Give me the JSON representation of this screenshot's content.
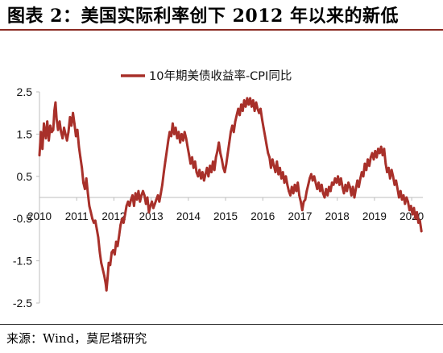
{
  "header": {
    "title": "图表 2：美国实际利率创下 2012 年以来的新低"
  },
  "footer": {
    "source": "来源：Wind，莫尼塔研究"
  },
  "chart_data": {
    "type": "line",
    "title": "",
    "xlabel": "",
    "ylabel": "",
    "ylim": [
      -2.5,
      2.5
    ],
    "yticks": [
      2.5,
      1.5,
      0.5,
      -0.5,
      -1.5,
      -2.5
    ],
    "xlim": [
      2010.0,
      2020.3
    ],
    "xticks": [
      "2010",
      "2011",
      "2012",
      "2013",
      "2014",
      "2015",
      "2016",
      "2017",
      "2018",
      "2019",
      "2020"
    ],
    "legend_position": "top-center",
    "grid": false,
    "series": [
      {
        "name": "10年期美债收益率-CPI同比",
        "color": "#a8302a",
        "points": [
          [
            2010.0,
            1.0
          ],
          [
            2010.04,
            1.55
          ],
          [
            2010.08,
            1.15
          ],
          [
            2010.12,
            1.75
          ],
          [
            2010.17,
            1.4
          ],
          [
            2010.21,
            1.8
          ],
          [
            2010.25,
            1.35
          ],
          [
            2010.29,
            1.7
          ],
          [
            2010.33,
            1.55
          ],
          [
            2010.37,
            1.6
          ],
          [
            2010.4,
            2.05
          ],
          [
            2010.43,
            2.25
          ],
          [
            2010.46,
            1.85
          ],
          [
            2010.5,
            1.6
          ],
          [
            2010.54,
            1.8
          ],
          [
            2010.58,
            1.55
          ],
          [
            2010.62,
            1.4
          ],
          [
            2010.66,
            1.65
          ],
          [
            2010.7,
            1.5
          ],
          [
            2010.74,
            1.35
          ],
          [
            2010.78,
            1.55
          ],
          [
            2010.82,
            1.9
          ],
          [
            2010.86,
            1.7
          ],
          [
            2010.9,
            2.0
          ],
          [
            2010.94,
            1.75
          ],
          [
            2010.98,
            1.45
          ],
          [
            2011.02,
            1.6
          ],
          [
            2011.06,
            1.2
          ],
          [
            2011.1,
            0.95
          ],
          [
            2011.14,
            0.7
          ],
          [
            2011.18,
            0.35
          ],
          [
            2011.22,
            0.2
          ],
          [
            2011.26,
            0.45
          ],
          [
            2011.3,
            0.1
          ],
          [
            2011.34,
            -0.2
          ],
          [
            2011.38,
            -0.35
          ],
          [
            2011.42,
            -0.5
          ],
          [
            2011.46,
            -0.6
          ],
          [
            2011.5,
            -0.55
          ],
          [
            2011.54,
            -0.75
          ],
          [
            2011.58,
            -0.95
          ],
          [
            2011.62,
            -1.3
          ],
          [
            2011.66,
            -1.55
          ],
          [
            2011.7,
            -1.7
          ],
          [
            2011.74,
            -1.85
          ],
          [
            2011.78,
            -2.05
          ],
          [
            2011.8,
            -2.2
          ],
          [
            2011.83,
            -1.9
          ],
          [
            2011.86,
            -1.55
          ],
          [
            2011.9,
            -1.6
          ],
          [
            2011.94,
            -1.3
          ],
          [
            2011.98,
            -1.25
          ],
          [
            2012.02,
            -1.35
          ],
          [
            2012.06,
            -1.05
          ],
          [
            2012.1,
            -1.15
          ],
          [
            2012.14,
            -0.9
          ],
          [
            2012.18,
            -0.65
          ],
          [
            2012.22,
            -0.5
          ],
          [
            2012.26,
            -0.6
          ],
          [
            2012.3,
            -0.4
          ],
          [
            2012.34,
            -0.2
          ],
          [
            2012.38,
            -0.1
          ],
          [
            2012.42,
            -0.2
          ],
          [
            2012.46,
            -0.05
          ],
          [
            2012.5,
            0.05
          ],
          [
            2012.54,
            -0.2
          ],
          [
            2012.58,
            0.1
          ],
          [
            2012.62,
            -0.05
          ],
          [
            2012.66,
            0.15
          ],
          [
            2012.7,
            -0.1
          ],
          [
            2012.74,
            0.05
          ],
          [
            2012.78,
            0.15
          ],
          [
            2012.82,
            0.05
          ],
          [
            2012.86,
            -0.15
          ],
          [
            2012.9,
            0.0
          ],
          [
            2012.94,
            -0.35
          ],
          [
            2012.98,
            -0.2
          ],
          [
            2013.02,
            -0.1
          ],
          [
            2013.06,
            -0.25
          ],
          [
            2013.1,
            -0.15
          ],
          [
            2013.14,
            -0.05
          ],
          [
            2013.18,
            0.05
          ],
          [
            2013.22,
            -0.1
          ],
          [
            2013.26,
            0.1
          ],
          [
            2013.3,
            0.3
          ],
          [
            2013.34,
            0.6
          ],
          [
            2013.38,
            0.85
          ],
          [
            2013.42,
            1.1
          ],
          [
            2013.46,
            1.35
          ],
          [
            2013.5,
            1.55
          ],
          [
            2013.54,
            1.45
          ],
          [
            2013.58,
            1.75
          ],
          [
            2013.62,
            1.5
          ],
          [
            2013.66,
            1.65
          ],
          [
            2013.7,
            1.4
          ],
          [
            2013.74,
            1.55
          ],
          [
            2013.78,
            1.3
          ],
          [
            2013.82,
            1.5
          ],
          [
            2013.86,
            1.35
          ],
          [
            2013.9,
            1.55
          ],
          [
            2013.94,
            1.4
          ],
          [
            2013.98,
            1.2
          ],
          [
            2014.02,
            1.0
          ],
          [
            2014.06,
            0.8
          ],
          [
            2014.1,
            0.95
          ],
          [
            2014.14,
            0.7
          ],
          [
            2014.18,
            0.85
          ],
          [
            2014.22,
            0.6
          ],
          [
            2014.26,
            0.5
          ],
          [
            2014.3,
            0.65
          ],
          [
            2014.34,
            0.45
          ],
          [
            2014.38,
            0.6
          ],
          [
            2014.42,
            0.4
          ],
          [
            2014.46,
            0.55
          ],
          [
            2014.5,
            0.7
          ],
          [
            2014.54,
            0.5
          ],
          [
            2014.58,
            0.75
          ],
          [
            2014.62,
            0.6
          ],
          [
            2014.66,
            0.85
          ],
          [
            2014.7,
            0.65
          ],
          [
            2014.74,
            0.95
          ],
          [
            2014.78,
            1.1
          ],
          [
            2014.82,
            1.3
          ],
          [
            2014.86,
            1.05
          ],
          [
            2014.9,
            0.9
          ],
          [
            2014.94,
            0.7
          ],
          [
            2014.98,
            0.6
          ],
          [
            2015.02,
            0.8
          ],
          [
            2015.06,
            1.05
          ],
          [
            2015.1,
            1.3
          ],
          [
            2015.14,
            1.55
          ],
          [
            2015.18,
            1.7
          ],
          [
            2015.22,
            1.55
          ],
          [
            2015.26,
            1.8
          ],
          [
            2015.3,
            1.95
          ],
          [
            2015.34,
            2.1
          ],
          [
            2015.38,
            1.95
          ],
          [
            2015.42,
            2.2
          ],
          [
            2015.46,
            2.05
          ],
          [
            2015.5,
            2.3
          ],
          [
            2015.54,
            2.15
          ],
          [
            2015.58,
            2.35
          ],
          [
            2015.62,
            2.2
          ],
          [
            2015.66,
            2.35
          ],
          [
            2015.7,
            2.15
          ],
          [
            2015.74,
            2.3
          ],
          [
            2015.78,
            2.05
          ],
          [
            2015.82,
            2.25
          ],
          [
            2015.86,
            2.1
          ],
          [
            2015.9,
            2.0
          ],
          [
            2015.94,
            2.1
          ],
          [
            2015.98,
            1.85
          ],
          [
            2016.02,
            1.65
          ],
          [
            2016.06,
            1.45
          ],
          [
            2016.1,
            1.25
          ],
          [
            2016.14,
            1.05
          ],
          [
            2016.18,
            0.95
          ],
          [
            2016.22,
            0.7
          ],
          [
            2016.26,
            0.9
          ],
          [
            2016.3,
            0.75
          ],
          [
            2016.34,
            0.6
          ],
          [
            2016.38,
            0.85
          ],
          [
            2016.42,
            0.55
          ],
          [
            2016.46,
            0.7
          ],
          [
            2016.5,
            0.45
          ],
          [
            2016.54,
            0.6
          ],
          [
            2016.58,
            0.35
          ],
          [
            2016.62,
            0.5
          ],
          [
            2016.66,
            0.3
          ],
          [
            2016.7,
            0.15
          ],
          [
            2016.74,
            0.05
          ],
          [
            2016.78,
            0.25
          ],
          [
            2016.82,
            0.1
          ],
          [
            2016.86,
            0.3
          ],
          [
            2016.9,
            0.15
          ],
          [
            2016.94,
            0.35
          ],
          [
            2016.98,
            0.05
          ],
          [
            2017.02,
            -0.1
          ],
          [
            2017.06,
            -0.3
          ],
          [
            2017.1,
            -0.1
          ],
          [
            2017.14,
            -0.05
          ],
          [
            2017.18,
            0.15
          ],
          [
            2017.22,
            0.3
          ],
          [
            2017.26,
            0.45
          ],
          [
            2017.3,
            0.55
          ],
          [
            2017.34,
            0.4
          ],
          [
            2017.38,
            0.5
          ],
          [
            2017.42,
            0.35
          ],
          [
            2017.46,
            0.2
          ],
          [
            2017.5,
            0.35
          ],
          [
            2017.54,
            0.15
          ],
          [
            2017.58,
            0.3
          ],
          [
            2017.62,
            0.1
          ],
          [
            2017.66,
            0.0
          ],
          [
            2017.7,
            0.2
          ],
          [
            2017.74,
            0.05
          ],
          [
            2017.78,
            0.25
          ],
          [
            2017.82,
            0.15
          ],
          [
            2017.86,
            0.35
          ],
          [
            2017.9,
            0.3
          ],
          [
            2017.94,
            0.45
          ],
          [
            2017.98,
            0.35
          ],
          [
            2018.02,
            0.5
          ],
          [
            2018.06,
            0.3
          ],
          [
            2018.1,
            0.45
          ],
          [
            2018.14,
            0.25
          ],
          [
            2018.18,
            0.1
          ],
          [
            2018.22,
            0.3
          ],
          [
            2018.26,
            0.15
          ],
          [
            2018.3,
            0.35
          ],
          [
            2018.34,
            0.25
          ],
          [
            2018.38,
            0.05
          ],
          [
            2018.42,
            0.25
          ],
          [
            2018.46,
            0.0
          ],
          [
            2018.5,
            0.2
          ],
          [
            2018.54,
            0.4
          ],
          [
            2018.58,
            0.25
          ],
          [
            2018.62,
            0.45
          ],
          [
            2018.66,
            0.6
          ],
          [
            2018.7,
            0.5
          ],
          [
            2018.74,
            0.8
          ],
          [
            2018.78,
            0.65
          ],
          [
            2018.82,
            0.9
          ],
          [
            2018.86,
            0.75
          ],
          [
            2018.9,
            0.95
          ],
          [
            2018.94,
            1.05
          ],
          [
            2018.98,
            0.9
          ],
          [
            2019.02,
            1.1
          ],
          [
            2019.06,
            0.95
          ],
          [
            2019.1,
            1.15
          ],
          [
            2019.14,
            1.05
          ],
          [
            2019.18,
            1.2
          ],
          [
            2019.22,
            1.0
          ],
          [
            2019.26,
            1.15
          ],
          [
            2019.3,
            0.8
          ],
          [
            2019.34,
            0.6
          ],
          [
            2019.38,
            0.7
          ],
          [
            2019.42,
            0.45
          ],
          [
            2019.46,
            0.65
          ],
          [
            2019.5,
            0.5
          ],
          [
            2019.54,
            0.3
          ],
          [
            2019.58,
            0.4
          ],
          [
            2019.62,
            0.2
          ],
          [
            2019.66,
            0.0
          ],
          [
            2019.7,
            0.15
          ],
          [
            2019.74,
            -0.05
          ],
          [
            2019.78,
            0.05
          ],
          [
            2019.82,
            -0.15
          ],
          [
            2019.86,
            0.0
          ],
          [
            2019.9,
            -0.1
          ],
          [
            2019.94,
            -0.3
          ],
          [
            2019.98,
            -0.2
          ],
          [
            2020.02,
            -0.4
          ],
          [
            2020.06,
            -0.25
          ],
          [
            2020.1,
            -0.5
          ],
          [
            2020.14,
            -0.35
          ],
          [
            2020.18,
            -0.6
          ],
          [
            2020.22,
            -0.55
          ],
          [
            2020.26,
            -0.8
          ]
        ]
      }
    ]
  }
}
